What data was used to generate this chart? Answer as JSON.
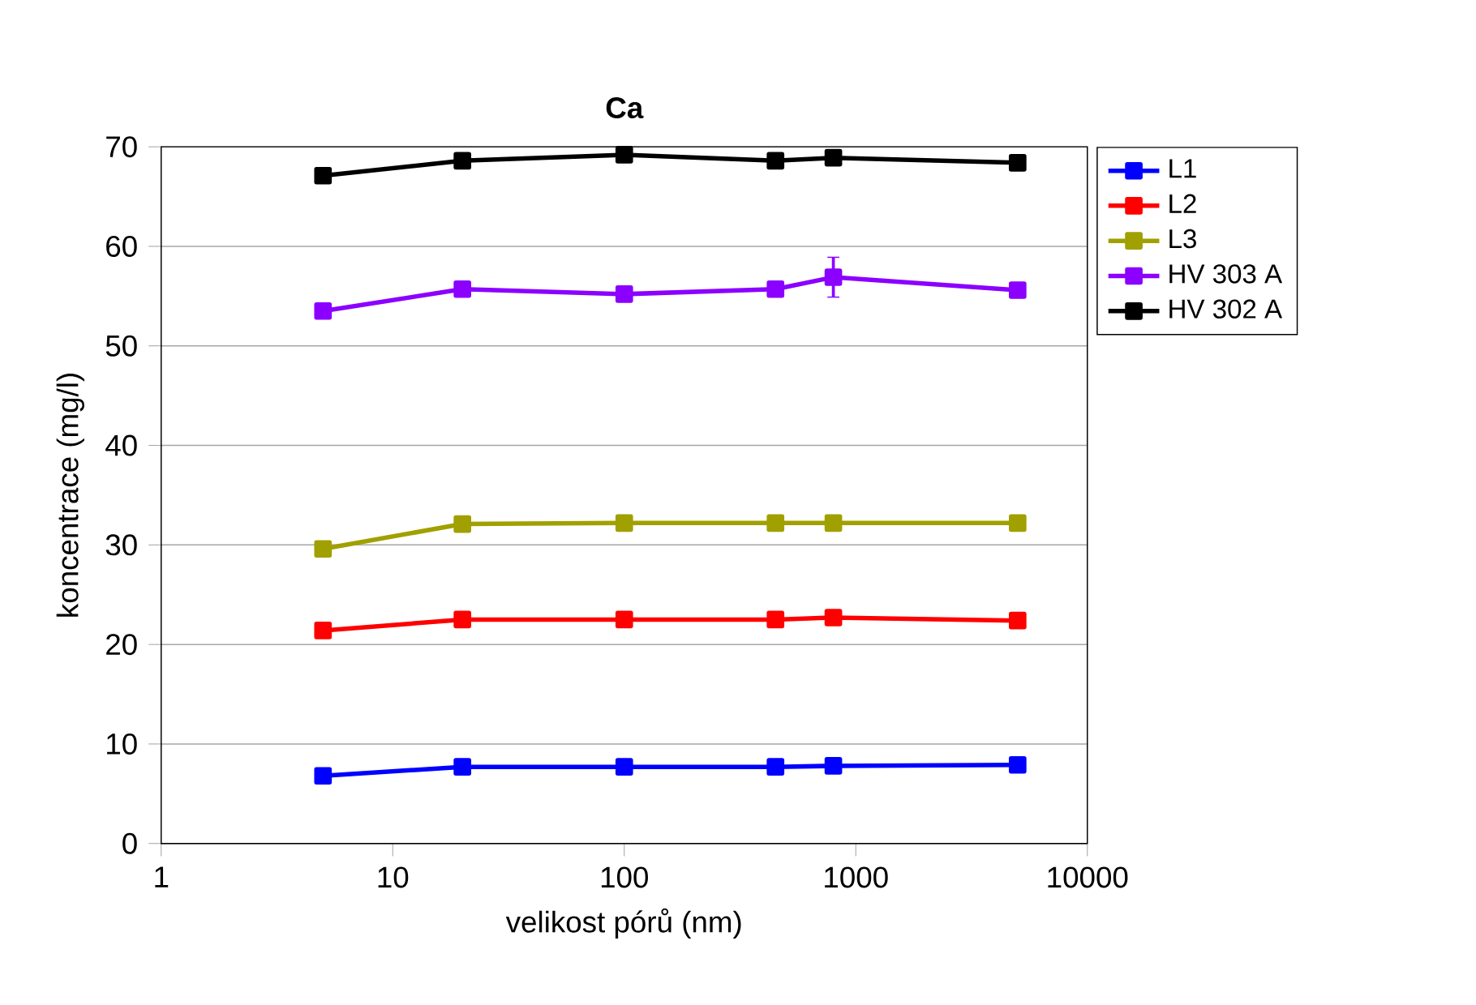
{
  "chart_data": {
    "type": "line",
    "title": "Ca",
    "xlabel": "velikost pórů (nm)",
    "ylabel": "koncentrace (mg/l)",
    "log": "x",
    "xlim": [
      1,
      10000
    ],
    "xticks": [
      1,
      10,
      100,
      1000,
      10000
    ],
    "ylim": [
      0,
      70
    ],
    "yticks": [
      0,
      10,
      20,
      30,
      40,
      50,
      60,
      70
    ],
    "grid": "y",
    "legend": "right",
    "marker": "square",
    "line_style": "solid",
    "x": [
      5,
      20,
      100,
      450,
      800,
      5000
    ],
    "series": [
      {
        "name": "L1",
        "color": "#0000ff",
        "values": [
          6.8,
          7.7,
          7.7,
          7.7,
          7.8,
          7.9
        ]
      },
      {
        "name": "L2",
        "color": "#ff0000",
        "values": [
          21.4,
          22.5,
          22.5,
          22.5,
          22.7,
          22.4
        ]
      },
      {
        "name": "L3",
        "color": "#a0a000",
        "values": [
          29.6,
          32.1,
          32.2,
          32.2,
          32.2,
          32.2
        ]
      },
      {
        "name": "HV 303 A",
        "color": "#8b00ff",
        "values": [
          53.5,
          55.7,
          55.2,
          55.7,
          56.9,
          55.6
        ],
        "errors": [
          null,
          null,
          null,
          null,
          2,
          null
        ]
      },
      {
        "name": "HV 302 A",
        "color": "#000000",
        "values": [
          67.1,
          68.6,
          69.2,
          68.6,
          68.9,
          68.4
        ]
      }
    ]
  }
}
